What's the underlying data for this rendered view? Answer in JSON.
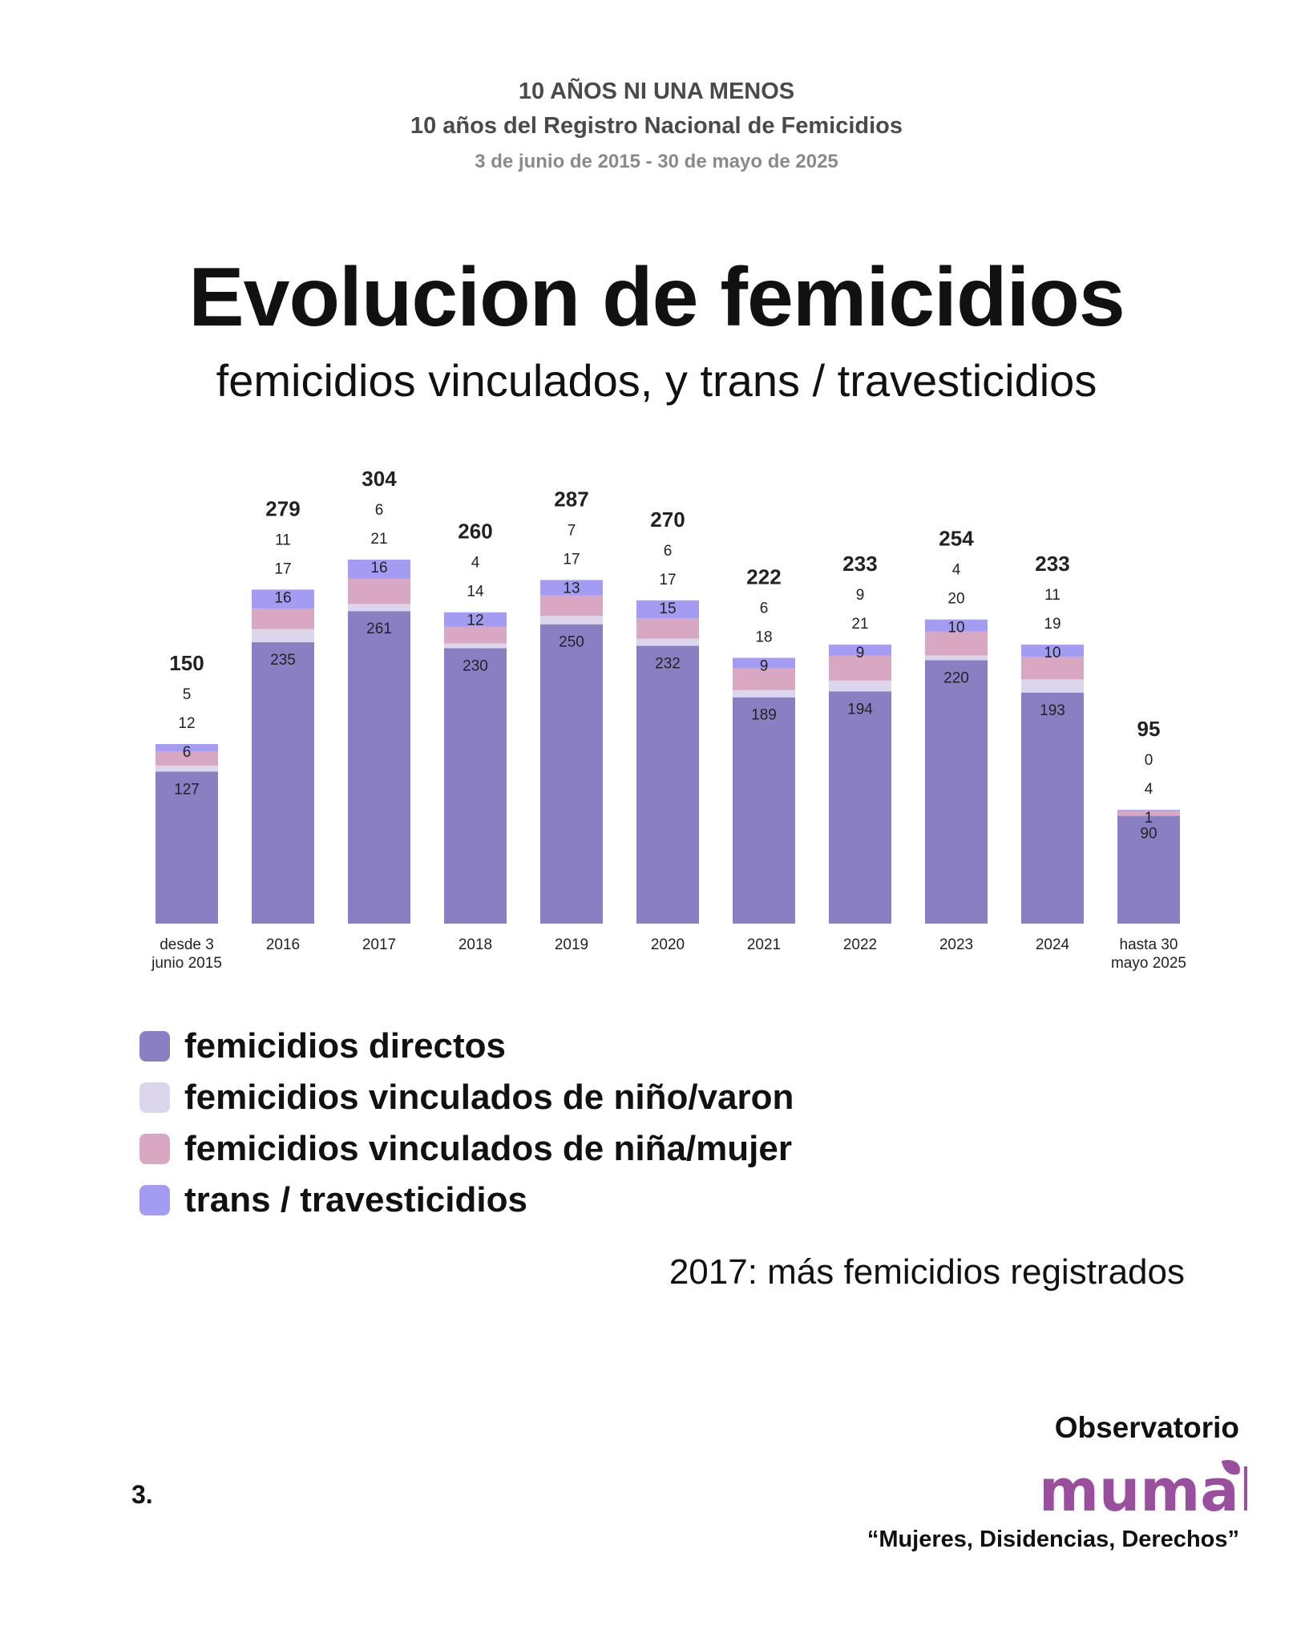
{
  "header": {
    "kicker": "10 AÑOS NI UNA MENOS",
    "kicker2": "10 años del Registro Nacional de Femicidios",
    "dates": "3 de junio de 2015 - 30 de mayo de 2025"
  },
  "colors": {
    "directos": "#8b7fc4",
    "vinculados_varon": "#dcd6ec",
    "vinculados_mujer": "#d8a7c2",
    "trans": "#a49cf2",
    "logo": "#9a4f9e"
  },
  "chart_data": {
    "type": "bar",
    "stacked": true,
    "title": "Evolucion de femicidios",
    "subtitle": "femicidios vinculados, y trans / travesticidios",
    "categories": [
      [
        "desde 3",
        "junio 2015"
      ],
      [
        "2016"
      ],
      [
        "2017"
      ],
      [
        "2018"
      ],
      [
        "2019"
      ],
      [
        "2020"
      ],
      [
        "2021"
      ],
      [
        "2022"
      ],
      [
        "2023"
      ],
      [
        "2024"
      ],
      [
        "hasta 30",
        "mayo 2025"
      ]
    ],
    "series": [
      {
        "name": "femicidios directos",
        "values": [
          127,
          235,
          261,
          230,
          250,
          232,
          189,
          194,
          220,
          193,
          90
        ]
      },
      {
        "name": "femicidios vinculados de niño/varon",
        "values": [
          5,
          11,
          6,
          4,
          7,
          6,
          6,
          9,
          4,
          11,
          0
        ]
      },
      {
        "name": "femicidios vinculados de niña/mujer",
        "values": [
          12,
          17,
          21,
          14,
          17,
          17,
          18,
          21,
          20,
          19,
          4
        ]
      },
      {
        "name": "trans / travesticidios",
        "values": [
          6,
          16,
          16,
          12,
          13,
          15,
          9,
          9,
          10,
          10,
          1
        ]
      }
    ],
    "totals": [
      150,
      279,
      304,
      260,
      287,
      270,
      222,
      233,
      254,
      233,
      95
    ],
    "ylim": [
      0,
      304
    ],
    "grid": false,
    "legend_position": "bottom-left"
  },
  "note": "2017: más femicidios registrados",
  "page_number": "3.",
  "organization": {
    "label": "Observatorio",
    "logo_text": "mumala",
    "tagline": "“Mujeres, Disidencias, Derechos”"
  }
}
